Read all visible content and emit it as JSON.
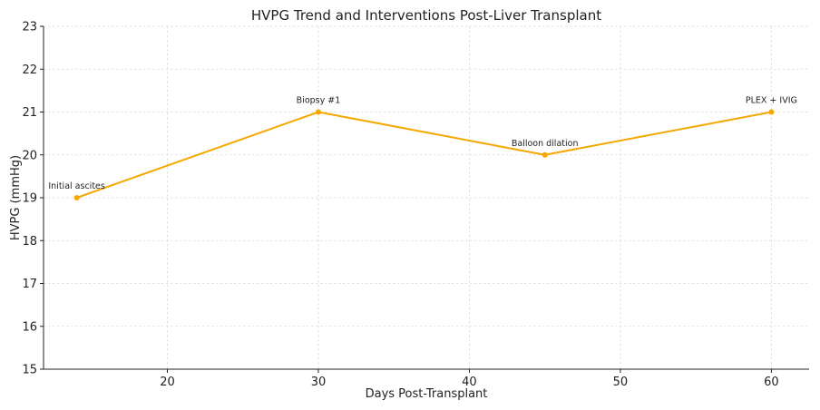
{
  "chart_data": {
    "type": "line",
    "title": "HVPG Trend and Interventions Post-Liver Transplant",
    "xlabel": "Days Post-Transplant",
    "ylabel": "HVPG (mmHg)",
    "xlim": [
      11.8,
      62.5
    ],
    "ylim": [
      15,
      23
    ],
    "xticks": [
      20,
      30,
      40,
      50,
      60
    ],
    "yticks": [
      15,
      16,
      17,
      18,
      19,
      20,
      21,
      22,
      23
    ],
    "grid": true,
    "series": [
      {
        "x": [
          14,
          30,
          45,
          60
        ],
        "y": [
          19,
          21,
          20,
          21
        ],
        "color": "#f5a800",
        "marker": "circle"
      }
    ],
    "annotations": [
      {
        "x": 14,
        "y": 19,
        "text": "Initial ascites"
      },
      {
        "x": 30,
        "y": 21,
        "text": "Biopsy #1"
      },
      {
        "x": 45,
        "y": 20,
        "text": "Balloon dilation"
      },
      {
        "x": 60,
        "y": 21,
        "text": "PLEX + IVIG"
      }
    ]
  }
}
